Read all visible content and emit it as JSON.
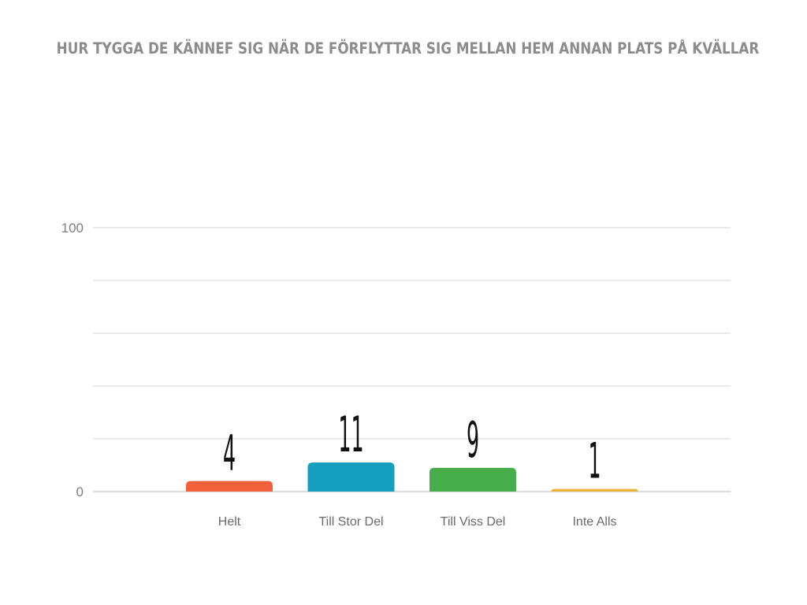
{
  "chart_data": {
    "type": "bar",
    "title": "HUR TYGGA DE KÄNNEF SIG NÄR DE FÖRFLYTTAR SIG MELLAN HEM ANNAN PLATS PÅ KVÄLLAR",
    "categories": [
      "Helt",
      "Till Stor Del",
      "Till Viss Del",
      "Inte Alls"
    ],
    "values": [
      4,
      11,
      9,
      1
    ],
    "data_labels": [
      "4",
      "11",
      "9",
      "1"
    ],
    "colors": [
      "#f0603a",
      "#159fbf",
      "#47ad4b",
      "#e8b43a"
    ],
    "ylim": [
      0,
      100
    ],
    "y_tick_labels": [
      "0",
      "100"
    ],
    "gridlines": 5,
    "grid": true,
    "xlabel": "",
    "ylabel": ""
  }
}
